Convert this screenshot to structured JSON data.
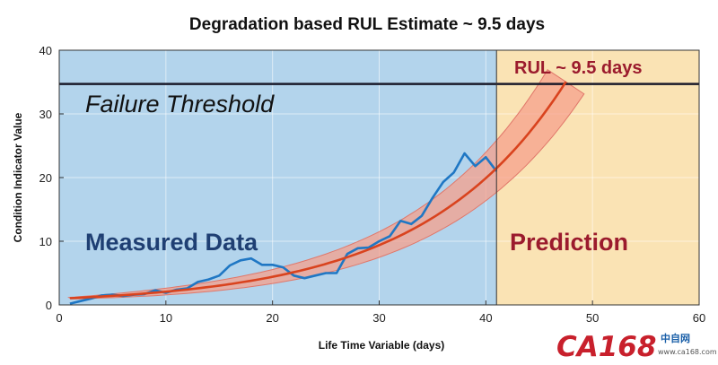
{
  "chart_data": {
    "type": "line",
    "title": "Degradation based RUL Estimate ~ 9.5 days",
    "xlabel": "Life Time Variable (days)",
    "ylabel": "Condition Indicator Value",
    "xlim": [
      0,
      60
    ],
    "ylim": [
      0,
      40
    ],
    "xticks": [
      0,
      10,
      20,
      30,
      40,
      50,
      60
    ],
    "yticks": [
      0,
      10,
      20,
      30,
      40
    ],
    "grid": true,
    "regions": [
      {
        "name": "measured",
        "x_range": [
          0,
          41
        ],
        "color": "#b3d4ec",
        "label": "Measured Data"
      },
      {
        "name": "prediction",
        "x_range": [
          41,
          60
        ],
        "color": "#fae3b4",
        "label": "Prediction"
      }
    ],
    "threshold": {
      "value": 34.7,
      "label": "Failure Threshold",
      "color": "#1a1a2a"
    },
    "rul_label": "RUL ~ 9.5 days",
    "series": [
      {
        "role": "measured",
        "color": "#1f77c4",
        "x": [
          1,
          2,
          3,
          4,
          5,
          6,
          7,
          8,
          9,
          10,
          11,
          12,
          13,
          14,
          15,
          16,
          17,
          18,
          19,
          20,
          21,
          22,
          23,
          24,
          25,
          26,
          27,
          28,
          29,
          30,
          31,
          32,
          33,
          34,
          35,
          36,
          37,
          38,
          39,
          40,
          41
        ],
        "y": [
          0.2,
          0.6,
          1.0,
          1.5,
          1.6,
          1.4,
          1.6,
          1.7,
          2.3,
          1.9,
          2.4,
          2.6,
          3.6,
          4.0,
          4.6,
          6.2,
          7.0,
          7.3,
          6.3,
          6.3,
          5.9,
          4.6,
          4.2,
          4.6,
          5.0,
          5.0,
          8.0,
          8.9,
          9.0,
          10.0,
          10.8,
          13.2,
          12.7,
          14.0,
          16.8,
          19.3,
          20.8,
          23.8,
          21.8,
          23.2,
          21.0
        ]
      },
      {
        "role": "fit",
        "color": "#d9431e",
        "model": "exponential",
        "a": 0.98,
        "b": 0.0753,
        "x_range": [
          1,
          47.5
        ]
      }
    ],
    "confidence_band": {
      "color": "#f5a08c",
      "edge_color": "#e0776a",
      "half_width_start": 0.12,
      "half_width_end": 1.9
    }
  },
  "watermark": {
    "brand": "CA168",
    "subtitle": "中自网",
    "url": "www.ca168.com"
  }
}
